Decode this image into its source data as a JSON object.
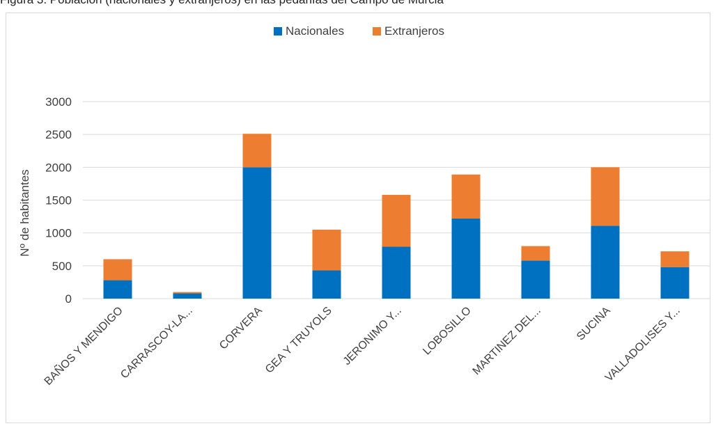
{
  "caption_text": "Figura 3. Población (nacionales y extranjeros) en las pedanías del Campo de Murcia",
  "chart_data": {
    "type": "bar",
    "stacked": true,
    "categories": [
      "BAÑOS Y MENDIGO",
      "CARRASCOY-LA...",
      "CORVERA",
      "GEA Y TRUYOLS",
      "JERONIMO Y...",
      "LOBOSILLO",
      "MARTINEZ DEL...",
      "SUCINA",
      "VALLADOLISES Y..."
    ],
    "series": [
      {
        "name": "Nacionales",
        "color": "#0070C0",
        "values": [
          280,
          80,
          2000,
          430,
          790,
          1220,
          580,
          1110,
          480
        ]
      },
      {
        "name": "Extranjeros",
        "color": "#ED7D31",
        "values": [
          320,
          20,
          510,
          620,
          790,
          670,
          220,
          890,
          240
        ]
      }
    ],
    "ylabel": "Nº de habitantes",
    "xlabel": "",
    "ylim": [
      0,
      3000
    ],
    "yticks": [
      0,
      500,
      1000,
      1500,
      2000,
      2500,
      3000
    ],
    "grid": true,
    "legend_position": "top-center"
  }
}
